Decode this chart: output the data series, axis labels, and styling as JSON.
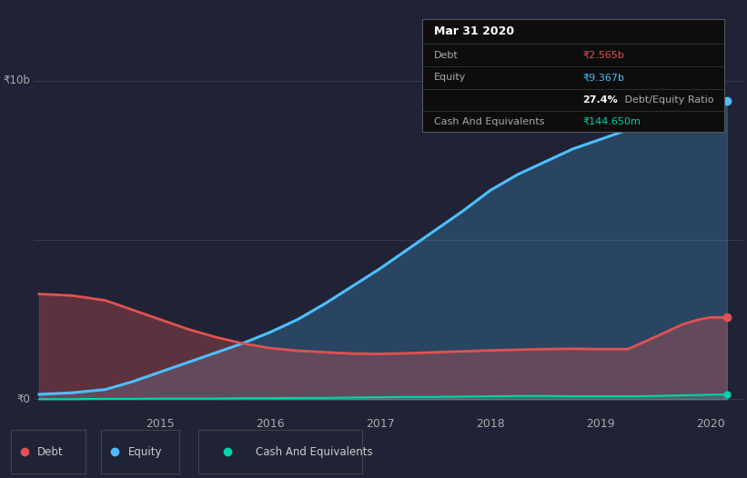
{
  "bg_color": "#1f2335",
  "plot_bg_color": "#1f2335",
  "title": "Mar 31 2020",
  "ylabel_10b": "₹10b",
  "ylabel_0": "₹0",
  "debt_label": "Debt",
  "equity_label": "Equity",
  "cash_label": "Cash And Equivalents",
  "debt_value": "₹2.565b",
  "equity_value": "₹9.367b",
  "ratio_bold": "27.4%",
  "ratio_rest": " Debt/Equity Ratio",
  "cash_value": "₹144.650m",
  "debt_color": "#e05252",
  "equity_color": "#4dbfff",
  "cash_color": "#00d4aa",
  "years": [
    2013.9,
    2014.2,
    2014.5,
    2014.75,
    2015.0,
    2015.25,
    2015.5,
    2015.75,
    2016.0,
    2016.25,
    2016.5,
    2016.75,
    2017.0,
    2017.25,
    2017.5,
    2017.75,
    2018.0,
    2018.25,
    2018.5,
    2018.75,
    2019.0,
    2019.25,
    2019.5,
    2019.75,
    2019.9,
    2020.0,
    2020.15
  ],
  "debt_data": [
    3.3,
    3.25,
    3.1,
    2.8,
    2.5,
    2.2,
    1.95,
    1.75,
    1.6,
    1.52,
    1.47,
    1.43,
    1.42,
    1.44,
    1.47,
    1.5,
    1.53,
    1.55,
    1.57,
    1.58,
    1.57,
    1.57,
    1.95,
    2.35,
    2.5,
    2.565,
    2.565
  ],
  "equity_data": [
    0.15,
    0.2,
    0.3,
    0.55,
    0.85,
    1.15,
    1.45,
    1.75,
    2.1,
    2.5,
    3.0,
    3.55,
    4.1,
    4.7,
    5.3,
    5.9,
    6.55,
    7.05,
    7.45,
    7.85,
    8.15,
    8.45,
    8.72,
    8.95,
    9.1,
    9.2,
    9.367
  ],
  "cash_data": [
    0.0,
    0.0,
    0.01,
    0.01,
    0.02,
    0.02,
    0.02,
    0.03,
    0.03,
    0.04,
    0.04,
    0.05,
    0.06,
    0.07,
    0.07,
    0.08,
    0.09,
    0.1,
    0.1,
    0.09,
    0.09,
    0.09,
    0.1,
    0.12,
    0.13,
    0.14,
    0.14465
  ],
  "xmin": 2013.85,
  "xmax": 2020.3,
  "ymin": -0.3,
  "ymax": 10.5,
  "xticks": [
    2015,
    2016,
    2017,
    2018,
    2019,
    2020
  ],
  "legend_items": [
    "Debt",
    "Equity",
    "Cash And Equivalents"
  ],
  "legend_colors": [
    "#e05252",
    "#4dbfff",
    "#00d4aa"
  ],
  "tooltip_color": "#0d0d0d",
  "tooltip_border": "#555555",
  "divider_color": "#333344"
}
